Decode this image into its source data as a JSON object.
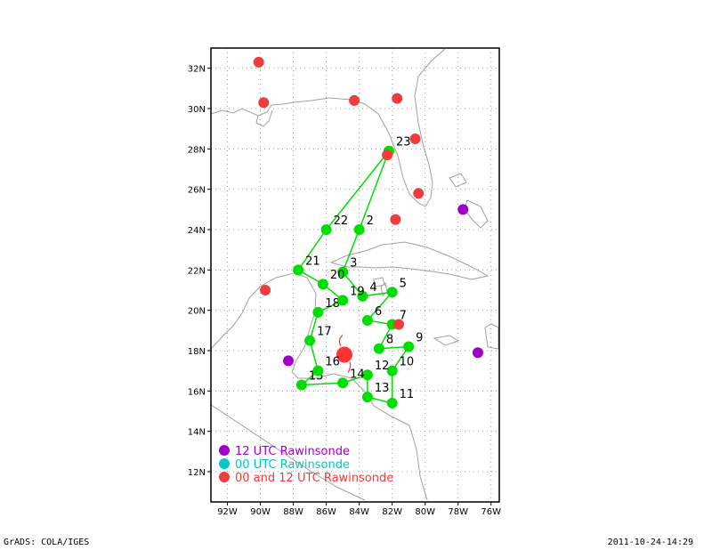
{
  "map": {
    "lon_labels": [
      "92W",
      "90W",
      "88W",
      "86W",
      "84W",
      "82W",
      "80W",
      "78W",
      "76W"
    ],
    "lat_labels": [
      "12N",
      "14N",
      "16N",
      "18N",
      "20N",
      "22N",
      "24N",
      "26N",
      "28N",
      "30N",
      "32N"
    ],
    "lon_range": [
      -93,
      -75.5
    ],
    "lat_range": [
      10.5,
      33
    ],
    "storm_center": {
      "lon": -84.9,
      "lat": 17.8,
      "color": "#ff3333"
    },
    "drop_track": [
      {
        "id": "2",
        "lon": -84.0,
        "lat": 24.0
      },
      {
        "id": "3",
        "lon": -85.0,
        "lat": 21.9
      },
      {
        "id": "4",
        "lon": -83.8,
        "lat": 20.7
      },
      {
        "id": "5",
        "lon": -82.0,
        "lat": 20.9
      },
      {
        "id": "6",
        "lon": -83.5,
        "lat": 19.5
      },
      {
        "id": "7",
        "lon": -82.0,
        "lat": 19.3
      },
      {
        "id": "8",
        "lon": -82.8,
        "lat": 18.1
      },
      {
        "id": "9",
        "lon": -81.0,
        "lat": 18.2
      },
      {
        "id": "10",
        "lon": -82.0,
        "lat": 17.0
      },
      {
        "id": "11",
        "lon": -82.0,
        "lat": 15.4
      },
      {
        "id": "12",
        "lon": -83.5,
        "lat": 16.8
      },
      {
        "id": "13",
        "lon": -83.5,
        "lat": 15.7
      },
      {
        "id": "14",
        "lon": -85.0,
        "lat": 16.4
      },
      {
        "id": "15",
        "lon": -87.5,
        "lat": 16.3
      },
      {
        "id": "16",
        "lon": -86.5,
        "lat": 17.0
      },
      {
        "id": "17",
        "lon": -87.0,
        "lat": 18.5
      },
      {
        "id": "18",
        "lon": -86.5,
        "lat": 19.9
      },
      {
        "id": "19",
        "lon": -85.0,
        "lat": 20.5
      },
      {
        "id": "20",
        "lon": -86.2,
        "lat": 21.3
      },
      {
        "id": "21",
        "lon": -87.7,
        "lat": 22.0
      },
      {
        "id": "22",
        "lon": -86.0,
        "lat": 24.0
      },
      {
        "id": "23",
        "lon": -82.2,
        "lat": 27.9
      }
    ],
    "raob_12": [
      {
        "lon": -88.3,
        "lat": 17.5
      },
      {
        "lon": -77.7,
        "lat": 25.0
      },
      {
        "lon": -76.8,
        "lat": 17.9
      }
    ],
    "raob_00_12": [
      {
        "lon": -90.1,
        "lat": 32.3
      },
      {
        "lon": -89.8,
        "lat": 30.3
      },
      {
        "lon": -84.3,
        "lat": 30.4
      },
      {
        "lon": -81.7,
        "lat": 30.5
      },
      {
        "lon": -80.6,
        "lat": 28.5
      },
      {
        "lon": -82.3,
        "lat": 27.7
      },
      {
        "lon": -80.4,
        "lat": 25.8
      },
      {
        "lon": -81.8,
        "lat": 24.5
      },
      {
        "lon": -89.7,
        "lat": 21.0
      },
      {
        "lon": -81.6,
        "lat": 19.3
      }
    ],
    "colors": {
      "track": "#00dd00",
      "raob_12": "#a000c8",
      "raob_00": "#00c8c8",
      "raob_00_12": "#f03c3c",
      "coast": "#a0a0a0",
      "grid": "#a0a0a0"
    }
  },
  "legend": {
    "items": [
      {
        "label": "12 UTC Rawinsonde",
        "color": "#a000c8"
      },
      {
        "label": "00 UTC Rawinsonde",
        "color": "#00c8c8"
      },
      {
        "label": "00 and 12 UTC Rawinsonde",
        "color": "#f03c3c"
      }
    ]
  },
  "footer": {
    "left": "GrADS: COLA/IGES",
    "right": "2011-10-24-14:29"
  }
}
